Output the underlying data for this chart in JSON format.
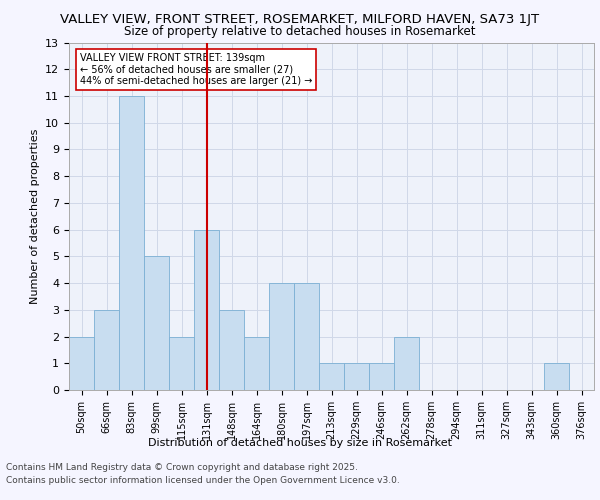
{
  "title_line1": "VALLEY VIEW, FRONT STREET, ROSEMARKET, MILFORD HAVEN, SA73 1JT",
  "title_line2": "Size of property relative to detached houses in Rosemarket",
  "xlabel": "Distribution of detached houses by size in Rosemarket",
  "ylabel": "Number of detached properties",
  "categories": [
    "50sqm",
    "66sqm",
    "83sqm",
    "99sqm",
    "115sqm",
    "131sqm",
    "148sqm",
    "164sqm",
    "180sqm",
    "197sqm",
    "213sqm",
    "229sqm",
    "246sqm",
    "262sqm",
    "278sqm",
    "294sqm",
    "311sqm",
    "327sqm",
    "343sqm",
    "360sqm",
    "376sqm"
  ],
  "values": [
    2,
    3,
    11,
    5,
    2,
    6,
    3,
    2,
    4,
    4,
    1,
    1,
    1,
    2,
    0,
    0,
    0,
    0,
    0,
    1,
    0
  ],
  "bar_color": "#c8ddf0",
  "bar_edge_color": "#7bafd4",
  "highlight_index": 5,
  "highlight_line_color": "#cc0000",
  "ylim": [
    0,
    13
  ],
  "yticks": [
    0,
    1,
    2,
    3,
    4,
    5,
    6,
    7,
    8,
    9,
    10,
    11,
    12,
    13
  ],
  "annotation_box_text": "VALLEY VIEW FRONT STREET: 139sqm\n← 56% of detached houses are smaller (27)\n44% of semi-detached houses are larger (21) →",
  "annotation_box_color": "#ffffff",
  "annotation_box_edge_color": "#cc0000",
  "grid_color": "#d0d8e8",
  "background_color": "#eef2fa",
  "fig_background_color": "#f5f5ff",
  "footer_line1": "Contains HM Land Registry data © Crown copyright and database right 2025.",
  "footer_line2": "Contains public sector information licensed under the Open Government Licence v3.0.",
  "title_fontsize": 9.5,
  "subtitle_fontsize": 8.5,
  "axis_label_fontsize": 8,
  "tick_fontsize": 7,
  "annotation_fontsize": 7,
  "footer_fontsize": 6.5
}
